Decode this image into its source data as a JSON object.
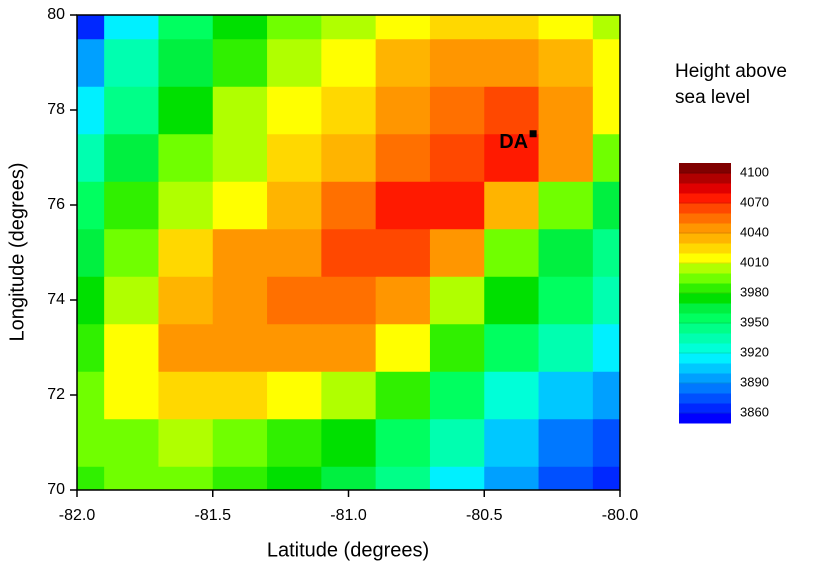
{
  "chart_data": {
    "type": "contour",
    "x_label": "Latitude (degrees)",
    "y_label": "Longitude (degrees)",
    "xlim": [
      -82,
      -80
    ],
    "ylim": [
      70,
      80
    ],
    "xticks": [
      {
        "value": -82,
        "label": "-82.0"
      },
      -81.5,
      {
        "value": -81,
        "label": "-81.0"
      },
      -80.5,
      {
        "value": -80,
        "label": "-80.0"
      }
    ],
    "yticks": [
      70,
      72,
      74,
      76,
      78,
      80
    ],
    "x": [
      -82,
      -81.8,
      -81.6,
      -81.4,
      -81.2,
      -81,
      -80.8,
      -80.6,
      -80.4,
      -80.2,
      -80
    ],
    "y": [
      70,
      71,
      72,
      73,
      74,
      75,
      76,
      77,
      78,
      79,
      80
    ],
    "z": [
      [
        3985,
        3990,
        3990,
        3985,
        3970,
        3960,
        3940,
        3910,
        3890,
        3870,
        3860
      ],
      [
        3990,
        3998,
        4000,
        3995,
        3985,
        3975,
        3955,
        3930,
        3900,
        3880,
        3870
      ],
      [
        3995,
        4010,
        4025,
        4020,
        4015,
        4005,
        3985,
        3955,
        3925,
        3905,
        3890
      ],
      [
        3985,
        4015,
        4045,
        4045,
        4042,
        4040,
        4010,
        3980,
        3950,
        3930,
        3910
      ],
      [
        3975,
        4005,
        4035,
        4045,
        4050,
        4050,
        4040,
        4005,
        3975,
        3950,
        3930
      ],
      [
        3965,
        3990,
        4020,
        4040,
        4045,
        4060,
        4065,
        4045,
        3990,
        3960,
        3940
      ],
      [
        3950,
        3980,
        4005,
        4018,
        4035,
        4050,
        4070,
        4070,
        4035,
        3990,
        3960
      ],
      [
        3930,
        3960,
        3990,
        4008,
        4020,
        4035,
        4050,
        4065,
        4070,
        4040,
        3990
      ],
      [
        3910,
        3945,
        3975,
        4000,
        4012,
        4025,
        4040,
        4050,
        4060,
        4045,
        4015
      ],
      [
        3890,
        3930,
        3960,
        3985,
        4005,
        4015,
        4030,
        4040,
        4045,
        4030,
        4010
      ],
      [
        3860,
        3910,
        3950,
        3975,
        3995,
        4005,
        4015,
        4025,
        4025,
        4015,
        4000
      ]
    ],
    "annotations": [
      {
        "text": "DA",
        "x": -80.32,
        "y": 77.5
      }
    ],
    "colorbar": {
      "title_lines": [
        "Height above",
        "sea level"
      ],
      "levels": [
        3850,
        3860,
        3870,
        3880,
        3890,
        3900,
        3910,
        3920,
        3930,
        3940,
        3950,
        3960,
        3970,
        3980,
        3990,
        4000,
        4010,
        4020,
        4030,
        4040,
        4050,
        4060,
        4070,
        4080,
        4090,
        4100,
        4110
      ],
      "colors": [
        "#0000ff",
        "#0028ff",
        "#0050ff",
        "#0078ff",
        "#00a0ff",
        "#00c8ff",
        "#00f0ff",
        "#00ffd8",
        "#00ffb0",
        "#00ff88",
        "#00ff60",
        "#00f040",
        "#00e000",
        "#30f000",
        "#70ff00",
        "#b0ff00",
        "#ffff00",
        "#ffd800",
        "#ffb400",
        "#ff9600",
        "#ff7000",
        "#ff4800",
        "#ff1a00",
        "#e00000",
        "#b00000",
        "#800000"
      ],
      "ticks": [
        3860,
        3890,
        3920,
        3950,
        3980,
        4010,
        4040,
        4070,
        4100
      ]
    }
  }
}
